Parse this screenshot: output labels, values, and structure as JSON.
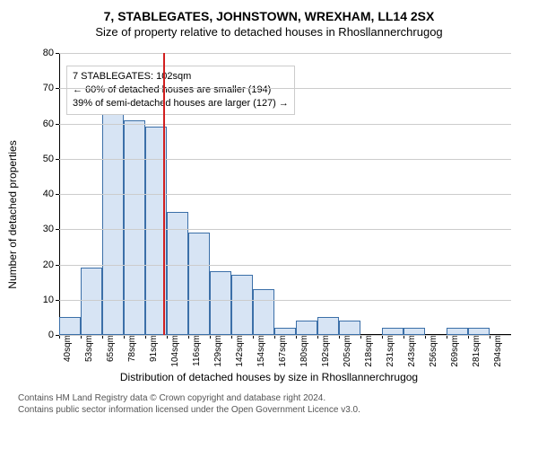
{
  "header": {
    "address": "7, STABLEGATES, JOHNSTOWN, WREXHAM, LL14 2SX",
    "subtitle": "Size of property relative to detached houses in Rhosllannerchrugog"
  },
  "chart": {
    "type": "histogram",
    "y_axis": {
      "label": "Number of detached properties",
      "min": 0,
      "max": 80,
      "step": 10
    },
    "x_axis": {
      "label": "Distribution of detached houses by size in Rhosllannerchrugog",
      "categories": [
        "40sqm",
        "53sqm",
        "65sqm",
        "78sqm",
        "91sqm",
        "104sqm",
        "116sqm",
        "129sqm",
        "142sqm",
        "154sqm",
        "167sqm",
        "180sqm",
        "192sqm",
        "205sqm",
        "218sqm",
        "231sqm",
        "243sqm",
        "256sqm",
        "269sqm",
        "281sqm",
        "294sqm"
      ]
    },
    "values": [
      5,
      19,
      63,
      61,
      59,
      35,
      29,
      18,
      17,
      13,
      2,
      4,
      5,
      4,
      0,
      2,
      2,
      0,
      2,
      2,
      0
    ],
    "bar_fill": "#d7e4f4",
    "bar_stroke": "#3b6fa8",
    "grid_color": "#cccccc",
    "background_color": "#ffffff",
    "marker": {
      "value_sqm": 102,
      "color": "#d21f1f"
    },
    "annotation": {
      "line1": "7 STABLEGATES: 102sqm",
      "line2": "← 60% of detached houses are smaller (194)",
      "line3": "39% of semi-detached houses are larger (127) →",
      "border_color": "#cccccc"
    }
  },
  "footer": {
    "line1": "Contains HM Land Registry data © Crown copyright and database right 2024.",
    "line2": "Contains public sector information licensed under the Open Government Licence v3.0."
  }
}
